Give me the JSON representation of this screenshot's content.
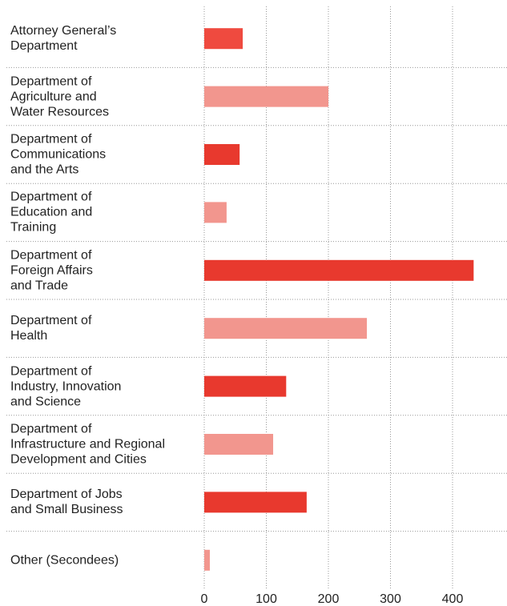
{
  "chart_data": {
    "type": "hbar",
    "categories": [
      "Attorney General’s\nDepartment",
      "Department of\nAgriculture and\nWater Resources",
      "Department of\nCommunications\nand the Arts",
      "Department of\nEducation and\nTraining",
      "Department of\nForeign Affairs\nand Trade",
      "Department of\nHealth",
      "Department of\nIndustry, Innovation\nand Science",
      "Department of\nInfrastructure and Regional\nDevelopment and Cities",
      "Department of Jobs\nand Small Business",
      "Other (Secondees)"
    ],
    "values": [
      62,
      200,
      57,
      36,
      434,
      262,
      132,
      111,
      165,
      9
    ],
    "colors": [
      "#ef4a3f",
      "#f2968e",
      "#e8392e",
      "#f2968e",
      "#e8392e",
      "#f2968e",
      "#e8392e",
      "#f2968e",
      "#e8392e",
      "#f2968e"
    ],
    "xlim": [
      0,
      450
    ],
    "xticks": [
      0,
      100,
      200,
      300,
      400
    ],
    "grid": true
  }
}
